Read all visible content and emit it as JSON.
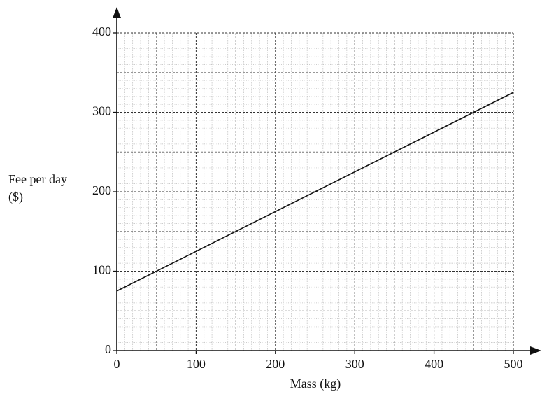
{
  "chart_data": {
    "type": "line",
    "xlabel": "Mass (kg)",
    "ylabel": [
      "Fee per day",
      "($)"
    ],
    "x": [
      0,
      500
    ],
    "series": [
      {
        "color": "#111111",
        "values": [
          75,
          325
        ]
      }
    ],
    "xlim": [
      0,
      500
    ],
    "xticks": [
      0,
      100,
      200,
      300,
      400,
      500
    ],
    "ylim": [
      0,
      400
    ],
    "yticks": [
      0,
      100,
      200,
      300,
      400
    ],
    "grid": true
  }
}
